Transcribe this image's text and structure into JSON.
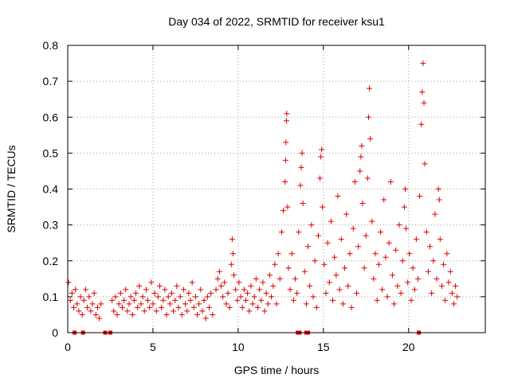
{
  "chart_data": {
    "type": "scatter",
    "title": "Day 034 of 2022, SRMTID for receiver ksu1",
    "xlabel": "GPS time / hours",
    "ylabel": "SRMTID / TECUs",
    "xlim": [
      0,
      24.5
    ],
    "ylim": [
      0,
      0.8
    ],
    "xticks": [
      0,
      5,
      10,
      15,
      20
    ],
    "xtick_labels": [
      "0",
      "5",
      "10",
      "15",
      "20"
    ],
    "yticks": [
      0,
      0.1,
      0.2,
      0.3,
      0.4,
      0.5,
      0.6,
      0.7,
      0.8
    ],
    "ytick_labels": [
      "0",
      "0.1",
      "0.2",
      "0.3",
      "0.4",
      "0.5",
      "0.6",
      "0.7",
      "0.8"
    ],
    "grid": true,
    "marker": "+",
    "color": "#dd0000",
    "series": [
      {
        "name": "SRMTID",
        "points": [
          [
            0.05,
            0.14
          ],
          [
            0.15,
            0.09
          ],
          [
            0.25,
            0.11
          ],
          [
            0.35,
            0.07
          ],
          [
            0.45,
            0.12
          ],
          [
            0.55,
            0.08
          ],
          [
            0.65,
            0.06
          ],
          [
            0.75,
            0.1
          ],
          [
            0.85,
            0.05
          ],
          [
            0.95,
            0.09
          ],
          [
            1.05,
            0.12
          ],
          [
            1.15,
            0.07
          ],
          [
            1.25,
            0.1
          ],
          [
            1.35,
            0.06
          ],
          [
            1.45,
            0.08
          ],
          [
            1.55,
            0.11
          ],
          [
            1.65,
            0.05
          ],
          [
            1.75,
            0.07
          ],
          [
            1.85,
            0.04
          ],
          [
            1.95,
            0.08
          ],
          [
            2.6,
            0.09
          ],
          [
            2.7,
            0.06
          ],
          [
            2.8,
            0.1
          ],
          [
            2.9,
            0.05
          ],
          [
            3.0,
            0.08
          ],
          [
            3.1,
            0.11
          ],
          [
            3.2,
            0.07
          ],
          [
            3.3,
            0.09
          ],
          [
            3.4,
            0.12
          ],
          [
            3.5,
            0.06
          ],
          [
            3.6,
            0.08
          ],
          [
            3.7,
            0.1
          ],
          [
            3.8,
            0.05
          ],
          [
            3.9,
            0.09
          ],
          [
            4.0,
            0.11
          ],
          [
            4.1,
            0.07
          ],
          [
            4.2,
            0.13
          ],
          [
            4.3,
            0.08
          ],
          [
            4.4,
            0.1
          ],
          [
            4.5,
            0.06
          ],
          [
            4.6,
            0.12
          ],
          [
            4.7,
            0.09
          ],
          [
            4.8,
            0.07
          ],
          [
            4.9,
            0.14
          ],
          [
            5.0,
            0.08
          ],
          [
            5.1,
            0.11
          ],
          [
            5.2,
            0.06
          ],
          [
            5.3,
            0.1
          ],
          [
            5.4,
            0.13
          ],
          [
            5.5,
            0.07
          ],
          [
            5.6,
            0.09
          ],
          [
            5.7,
            0.12
          ],
          [
            5.8,
            0.05
          ],
          [
            5.9,
            0.1
          ],
          [
            6.0,
            0.08
          ],
          [
            6.1,
            0.11
          ],
          [
            6.2,
            0.06
          ],
          [
            6.3,
            0.09
          ],
          [
            6.4,
            0.13
          ],
          [
            6.5,
            0.07
          ],
          [
            6.6,
            0.1
          ],
          [
            6.7,
            0.05
          ],
          [
            6.8,
            0.12
          ],
          [
            6.9,
            0.08
          ],
          [
            7.0,
            0.06
          ],
          [
            7.1,
            0.11
          ],
          [
            7.2,
            0.09
          ],
          [
            7.3,
            0.14
          ],
          [
            7.4,
            0.07
          ],
          [
            7.5,
            0.1
          ],
          [
            7.6,
            0.05
          ],
          [
            7.7,
            0.08
          ],
          [
            7.8,
            0.12
          ],
          [
            7.9,
            0.06
          ],
          [
            8.0,
            0.09
          ],
          [
            8.1,
            0.04
          ],
          [
            8.2,
            0.1
          ],
          [
            8.3,
            0.07
          ],
          [
            8.4,
            0.11
          ],
          [
            8.5,
            0.05
          ],
          [
            8.7,
            0.12
          ],
          [
            8.8,
            0.15
          ],
          [
            8.9,
            0.17
          ],
          [
            9.0,
            0.13
          ],
          [
            9.1,
            0.1
          ],
          [
            9.2,
            0.14
          ],
          [
            9.3,
            0.08
          ],
          [
            9.4,
            0.11
          ],
          [
            9.5,
            0.07
          ],
          [
            9.6,
            0.19
          ],
          [
            9.65,
            0.26
          ],
          [
            9.7,
            0.22
          ],
          [
            9.75,
            0.16
          ],
          [
            9.85,
            0.12
          ],
          [
            9.95,
            0.09
          ],
          [
            10.05,
            0.14
          ],
          [
            10.15,
            0.1
          ],
          [
            10.25,
            0.07
          ],
          [
            10.35,
            0.12
          ],
          [
            10.45,
            0.09
          ],
          [
            10.55,
            0.11
          ],
          [
            10.65,
            0.06
          ],
          [
            10.75,
            0.13
          ],
          [
            10.85,
            0.08
          ],
          [
            10.95,
            0.1
          ],
          [
            11.05,
            0.15
          ],
          [
            11.15,
            0.07
          ],
          [
            11.25,
            0.12
          ],
          [
            11.35,
            0.09
          ],
          [
            11.45,
            0.14
          ],
          [
            11.55,
            0.06
          ],
          [
            11.65,
            0.11
          ],
          [
            11.75,
            0.08
          ],
          [
            11.85,
            0.16
          ],
          [
            11.95,
            0.1
          ],
          [
            12.05,
            0.13
          ],
          [
            12.15,
            0.19
          ],
          [
            12.25,
            0.08
          ],
          [
            12.35,
            0.22
          ],
          [
            12.45,
            0.15
          ],
          [
            12.55,
            0.28
          ],
          [
            12.65,
            0.34
          ],
          [
            12.75,
            0.42
          ],
          [
            12.78,
            0.48
          ],
          [
            12.8,
            0.53
          ],
          [
            12.83,
            0.59
          ],
          [
            12.85,
            0.61
          ],
          [
            12.9,
            0.35
          ],
          [
            12.95,
            0.18
          ],
          [
            13.05,
            0.12
          ],
          [
            13.15,
            0.22
          ],
          [
            13.25,
            0.09
          ],
          [
            13.35,
            0.15
          ],
          [
            13.45,
            0.11
          ],
          [
            13.55,
            0.28
          ],
          [
            13.65,
            0.41
          ],
          [
            13.7,
            0.46
          ],
          [
            13.75,
            0.5
          ],
          [
            13.8,
            0.36
          ],
          [
            13.9,
            0.17
          ],
          [
            14.0,
            0.08
          ],
          [
            14.1,
            0.24
          ],
          [
            14.2,
            0.13
          ],
          [
            14.3,
            0.3
          ],
          [
            14.4,
            0.1
          ],
          [
            14.5,
            0.2
          ],
          [
            14.6,
            0.07
          ],
          [
            14.7,
            0.27
          ],
          [
            14.8,
            0.43
          ],
          [
            14.85,
            0.49
          ],
          [
            14.9,
            0.51
          ],
          [
            14.95,
            0.35
          ],
          [
            15.05,
            0.19
          ],
          [
            15.15,
            0.11
          ],
          [
            15.25,
            0.25
          ],
          [
            15.35,
            0.14
          ],
          [
            15.45,
            0.31
          ],
          [
            15.55,
            0.09
          ],
          [
            15.65,
            0.21
          ],
          [
            15.75,
            0.16
          ],
          [
            15.85,
            0.38
          ],
          [
            15.95,
            0.12
          ],
          [
            16.05,
            0.26
          ],
          [
            16.15,
            0.08
          ],
          [
            16.25,
            0.18
          ],
          [
            16.35,
            0.33
          ],
          [
            16.45,
            0.13
          ],
          [
            16.55,
            0.22
          ],
          [
            16.65,
            0.07
          ],
          [
            16.75,
            0.29
          ],
          [
            16.85,
            0.42
          ],
          [
            16.95,
            0.11
          ],
          [
            17.05,
            0.24
          ],
          [
            17.15,
            0.45
          ],
          [
            17.2,
            0.49
          ],
          [
            17.25,
            0.52
          ],
          [
            17.3,
            0.36
          ],
          [
            17.4,
            0.18
          ],
          [
            17.5,
            0.27
          ],
          [
            17.6,
            0.43
          ],
          [
            17.65,
            0.6
          ],
          [
            17.7,
            0.68
          ],
          [
            17.75,
            0.54
          ],
          [
            17.85,
            0.31
          ],
          [
            17.95,
            0.15
          ],
          [
            18.05,
            0.22
          ],
          [
            18.15,
            0.09
          ],
          [
            18.25,
            0.19
          ],
          [
            18.35,
            0.28
          ],
          [
            18.45,
            0.12
          ],
          [
            18.55,
            0.37
          ],
          [
            18.65,
            0.21
          ],
          [
            18.75,
            0.1
          ],
          [
            18.85,
            0.25
          ],
          [
            18.95,
            0.42
          ],
          [
            19.05,
            0.16
          ],
          [
            19.15,
            0.08
          ],
          [
            19.25,
            0.23
          ],
          [
            19.35,
            0.13
          ],
          [
            19.45,
            0.3
          ],
          [
            19.55,
            0.11
          ],
          [
            19.65,
            0.2
          ],
          [
            19.75,
            0.35
          ],
          [
            19.8,
            0.4
          ],
          [
            19.85,
            0.29
          ],
          [
            19.95,
            0.14
          ],
          [
            20.05,
            0.22
          ],
          [
            20.15,
            0.09
          ],
          [
            20.25,
            0.18
          ],
          [
            20.35,
            0.12
          ],
          [
            20.45,
            0.26
          ],
          [
            20.55,
            0.15
          ],
          [
            20.65,
            0.38
          ],
          [
            20.75,
            0.58
          ],
          [
            20.8,
            0.67
          ],
          [
            20.85,
            0.75
          ],
          [
            20.9,
            0.64
          ],
          [
            20.95,
            0.47
          ],
          [
            21.05,
            0.28
          ],
          [
            21.15,
            0.17
          ],
          [
            21.25,
            0.24
          ],
          [
            21.35,
            0.11
          ],
          [
            21.45,
            0.2
          ],
          [
            21.55,
            0.33
          ],
          [
            21.65,
            0.15
          ],
          [
            21.75,
            0.4
          ],
          [
            21.8,
            0.37
          ],
          [
            21.85,
            0.26
          ],
          [
            21.95,
            0.13
          ],
          [
            22.05,
            0.19
          ],
          [
            22.15,
            0.09
          ],
          [
            22.25,
            0.22
          ],
          [
            22.35,
            0.14
          ],
          [
            22.45,
            0.17
          ],
          [
            22.55,
            0.11
          ],
          [
            22.65,
            0.08
          ],
          [
            22.75,
            0.13
          ],
          [
            22.85,
            0.1
          ]
        ],
        "zero_points": [
          0.4,
          0.9,
          2.2,
          2.5,
          13.5,
          13.6,
          14.0,
          14.1,
          20.6
        ]
      }
    ]
  }
}
